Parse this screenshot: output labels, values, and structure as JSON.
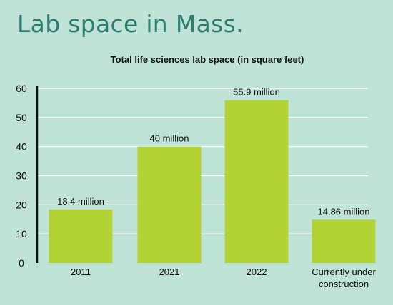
{
  "headline": "Lab space in Mass.",
  "colors": {
    "background": "#bfe3d7",
    "headline": "#2e7d72",
    "bar": "#b3d234",
    "gridline": "#ffffff",
    "axis": "#111111"
  },
  "chart_data": {
    "type": "bar",
    "title": "Total life sciences lab space (in square feet)",
    "xlabel": "",
    "ylabel": "",
    "ylim": [
      0,
      60
    ],
    "yticks": [
      0,
      10,
      20,
      30,
      40,
      50,
      60
    ],
    "grid": true,
    "categories": [
      [
        "2011"
      ],
      [
        "2021"
      ],
      [
        "2022"
      ],
      [
        "Currently under",
        "construction"
      ]
    ],
    "values": [
      18.4,
      40,
      55.9,
      14.86
    ],
    "data_labels": [
      "18.4 million",
      "40 million",
      "55.9 million",
      "14.86 million"
    ]
  }
}
